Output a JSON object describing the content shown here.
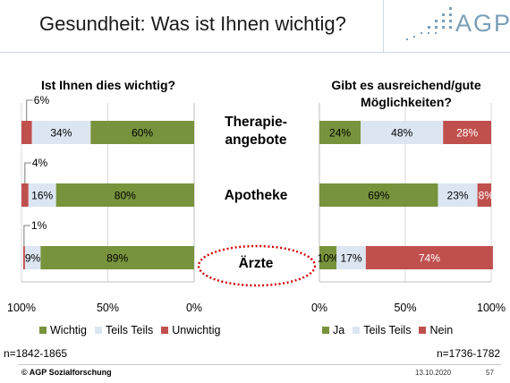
{
  "title": "Gesundheit:  Was ist Ihnen wichtig?",
  "logo": {
    "text": "AGP"
  },
  "categories": [
    "Therapie-\nangebote",
    "Apotheke",
    "Ärzte"
  ],
  "chart_data": [
    {
      "type": "bar",
      "orientation": "horizontal-stacked",
      "x_direction": "reversed",
      "title": "Ist Ihnen dies wichtig?",
      "categories": [
        "Therapieangebote",
        "Apotheke",
        "Ärzte"
      ],
      "series": [
        {
          "name": "Wichtig",
          "color": "#77933c",
          "values": [
            60,
            80,
            89
          ],
          "labels": [
            "60%",
            "80%",
            "89%"
          ]
        },
        {
          "name": "Teils Teils",
          "color": "#dce6f2",
          "values": [
            34,
            16,
            9
          ],
          "labels": [
            "34%",
            "16%",
            "9%"
          ]
        },
        {
          "name": "Unwichtig",
          "color": "#c0504d",
          "values": [
            6,
            4,
            1
          ],
          "labels": [
            "6%",
            "4%",
            "1%"
          ]
        }
      ],
      "xlim": [
        0,
        100
      ],
      "xticks": [
        "100%",
        "50%",
        "0%"
      ],
      "n_label": "n=1842-1865"
    },
    {
      "type": "bar",
      "orientation": "horizontal-stacked",
      "title": "Gibt es ausreichend/gute\nMöglichkeiten?",
      "categories": [
        "Therapieangebote",
        "Apotheke",
        "Ärzte"
      ],
      "series": [
        {
          "name": "Ja",
          "color": "#77933c",
          "values": [
            24,
            69,
            10
          ],
          "labels": [
            "24%",
            "69%",
            "10%"
          ]
        },
        {
          "name": "Teils Teils",
          "color": "#dce6f2",
          "values": [
            48,
            23,
            17
          ],
          "labels": [
            "48%",
            "23%",
            "17%"
          ]
        },
        {
          "name": "Nein",
          "color": "#c0504d",
          "values": [
            28,
            8,
            74
          ],
          "labels": [
            "28%",
            "8%",
            "74%"
          ]
        }
      ],
      "xlim": [
        0,
        100
      ],
      "xticks": [
        "0%",
        "50%",
        "100%"
      ],
      "n_label": "n=1736-1782"
    }
  ],
  "footer": {
    "copyright": "© AGP Sozialforschung",
    "date": "13.10.2020",
    "page": "57"
  }
}
